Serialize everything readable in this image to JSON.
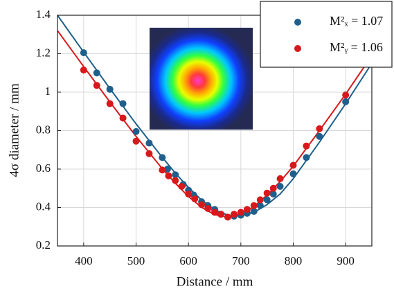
{
  "chart_data": {
    "type": "scatter",
    "x_label": "Distance / mm",
    "y_label": "4σ diameter / mm",
    "xlim": [
      350,
      950
    ],
    "xticks": [
      400,
      500,
      600,
      700,
      800,
      900
    ],
    "ylim": [
      0.2,
      1.4
    ],
    "yticks": [
      0.2,
      0.4,
      0.6,
      0.8,
      1,
      1.2,
      1.4
    ],
    "grid": true,
    "legend": "upper right",
    "series": [
      {
        "name": "M²ₓ = 1.07",
        "color": "#1f5f8b",
        "x": [
          400,
          425,
          450,
          475,
          500,
          525,
          550,
          560,
          575,
          590,
          600,
          610,
          625,
          637,
          650,
          662,
          687,
          700,
          712,
          725,
          737,
          750,
          762,
          775,
          800,
          825,
          850,
          900
        ],
        "values": [
          1.205,
          1.1,
          1.015,
          0.94,
          0.795,
          0.735,
          0.66,
          0.6,
          0.57,
          0.52,
          0.49,
          0.465,
          0.43,
          0.41,
          0.39,
          0.365,
          0.355,
          0.36,
          0.37,
          0.38,
          0.41,
          0.44,
          0.47,
          0.51,
          0.575,
          0.66,
          0.77,
          0.95
        ],
        "fit_x": [
          350,
          400,
          450,
          500,
          550,
          575,
          600,
          625,
          650,
          675,
          700,
          725,
          750,
          775,
          800,
          850,
          900,
          950
        ],
        "fit_values": [
          1.4,
          1.208,
          1.019,
          0.835,
          0.661,
          0.579,
          0.504,
          0.439,
          0.389,
          0.36,
          0.357,
          0.375,
          0.415,
          0.47,
          0.55,
          0.74,
          0.94,
          1.15
        ]
      },
      {
        "name": "M²ᵧ = 1.06",
        "color": "#d7191c",
        "x": [
          400,
          425,
          450,
          475,
          500,
          525,
          550,
          562,
          575,
          587,
          600,
          612,
          625,
          637,
          650,
          662,
          675,
          687,
          700,
          712,
          725,
          737,
          750,
          762,
          775,
          800,
          825,
          850,
          900
        ],
        "values": [
          1.115,
          1.035,
          0.94,
          0.865,
          0.745,
          0.68,
          0.595,
          0.565,
          0.54,
          0.51,
          0.47,
          0.445,
          0.415,
          0.395,
          0.375,
          0.365,
          0.35,
          0.365,
          0.375,
          0.39,
          0.41,
          0.44,
          0.475,
          0.5,
          0.55,
          0.62,
          0.72,
          0.81,
          0.985
        ],
        "fit_x": [
          350,
          400,
          450,
          500,
          550,
          575,
          600,
          625,
          650,
          675,
          700,
          725,
          750,
          775,
          800,
          850,
          900,
          950
        ],
        "fit_values": [
          1.32,
          1.133,
          0.949,
          0.77,
          0.602,
          0.526,
          0.457,
          0.401,
          0.363,
          0.35,
          0.365,
          0.405,
          0.465,
          0.535,
          0.615,
          0.8,
          0.99,
          1.19
        ]
      }
    ]
  }
}
